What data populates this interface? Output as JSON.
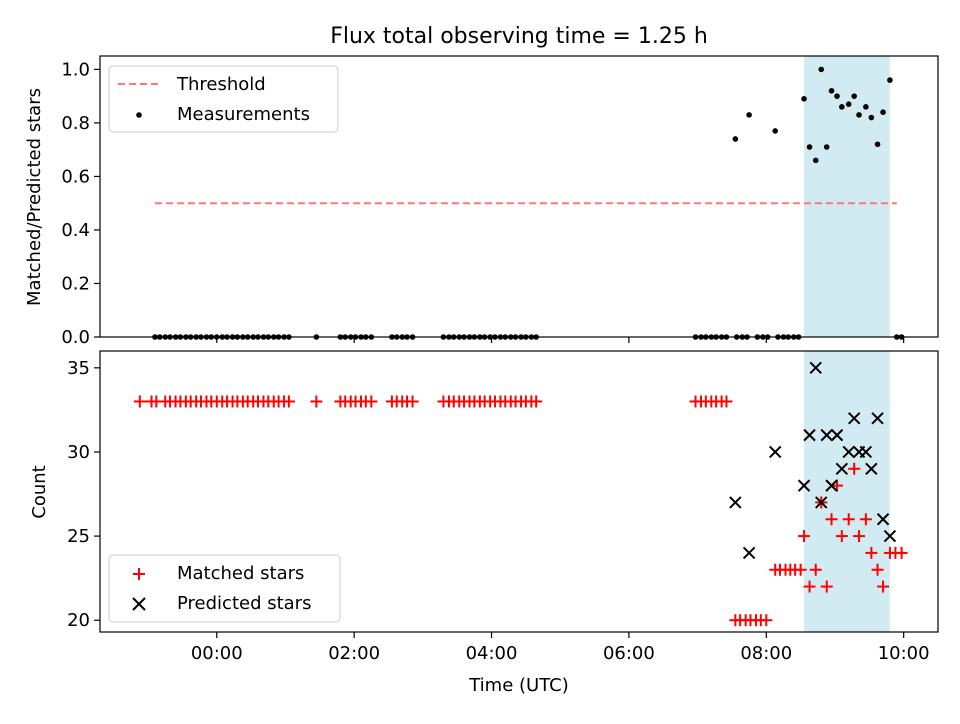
{
  "title": "Flux total observing time = 1.25 h",
  "highlight_window": {
    "start": 8.55,
    "end": 9.8,
    "color": "#add8e6"
  },
  "chart_data": [
    {
      "type": "scatter",
      "ylabel": "Matched/Predicted stars",
      "ylim": [
        0,
        1.05
      ],
      "yticks": [
        0.0,
        0.2,
        0.4,
        0.6,
        0.8,
        1.0
      ],
      "yticklabels": [
        "0.0",
        "0.2",
        "0.4",
        "0.6",
        "0.8",
        "1.0"
      ],
      "threshold": {
        "name": "Threshold",
        "value": 0.5,
        "x": [
          -0.9,
          9.9
        ],
        "color": "#ff7777"
      },
      "legend": {
        "position": "upper-left",
        "entries": [
          "Threshold",
          "Measurements"
        ]
      },
      "series": [
        {
          "name": "Measurements",
          "color": "#000000",
          "points": [
            [
              -0.9,
              0
            ],
            [
              -0.83,
              0
            ],
            [
              -0.75,
              0
            ],
            [
              -0.68,
              0
            ],
            [
              -0.6,
              0
            ],
            [
              -0.53,
              0
            ],
            [
              -0.45,
              0
            ],
            [
              -0.38,
              0
            ],
            [
              -0.3,
              0
            ],
            [
              -0.23,
              0
            ],
            [
              -0.15,
              0
            ],
            [
              -0.08,
              0
            ],
            [
              0,
              0
            ],
            [
              0.08,
              0
            ],
            [
              0.15,
              0
            ],
            [
              0.23,
              0
            ],
            [
              0.3,
              0
            ],
            [
              0.38,
              0
            ],
            [
              0.45,
              0
            ],
            [
              0.53,
              0
            ],
            [
              0.6,
              0
            ],
            [
              0.68,
              0
            ],
            [
              0.75,
              0
            ],
            [
              0.83,
              0
            ],
            [
              0.9,
              0
            ],
            [
              0.98,
              0
            ],
            [
              1.05,
              0
            ],
            [
              1.45,
              0
            ],
            [
              1.8,
              0
            ],
            [
              1.87,
              0
            ],
            [
              1.95,
              0
            ],
            [
              2.02,
              0
            ],
            [
              2.1,
              0
            ],
            [
              2.17,
              0
            ],
            [
              2.25,
              0
            ],
            [
              2.55,
              0
            ],
            [
              2.62,
              0
            ],
            [
              2.7,
              0
            ],
            [
              2.77,
              0
            ],
            [
              2.85,
              0
            ],
            [
              3.3,
              0
            ],
            [
              3.38,
              0
            ],
            [
              3.45,
              0
            ],
            [
              3.53,
              0
            ],
            [
              3.6,
              0
            ],
            [
              3.68,
              0
            ],
            [
              3.75,
              0
            ],
            [
              3.83,
              0
            ],
            [
              3.9,
              0
            ],
            [
              3.98,
              0
            ],
            [
              4.05,
              0
            ],
            [
              4.13,
              0
            ],
            [
              4.2,
              0
            ],
            [
              4.28,
              0
            ],
            [
              4.35,
              0
            ],
            [
              4.43,
              0
            ],
            [
              4.5,
              0
            ],
            [
              4.58,
              0
            ],
            [
              4.65,
              0
            ],
            [
              6.97,
              0
            ],
            [
              7.05,
              0
            ],
            [
              7.12,
              0
            ],
            [
              7.2,
              0
            ],
            [
              7.27,
              0
            ],
            [
              7.35,
              0
            ],
            [
              7.42,
              0
            ],
            [
              7.57,
              0
            ],
            [
              7.65,
              0
            ],
            [
              7.72,
              0
            ],
            [
              7.87,
              0
            ],
            [
              7.95,
              0
            ],
            [
              8.02,
              0
            ],
            [
              8.17,
              0
            ],
            [
              8.25,
              0
            ],
            [
              8.32,
              0
            ],
            [
              8.4,
              0
            ],
            [
              8.47,
              0
            ],
            [
              9.9,
              0
            ],
            [
              9.97,
              0
            ],
            [
              7.55,
              0.74
            ],
            [
              7.75,
              0.83
            ],
            [
              8.13,
              0.77
            ],
            [
              8.55,
              0.89
            ],
            [
              8.63,
              0.71
            ],
            [
              8.72,
              0.66
            ],
            [
              8.8,
              1.0
            ],
            [
              8.88,
              0.71
            ],
            [
              8.95,
              0.92
            ],
            [
              9.03,
              0.9
            ],
            [
              9.1,
              0.86
            ],
            [
              9.2,
              0.87
            ],
            [
              9.28,
              0.9
            ],
            [
              9.35,
              0.83
            ],
            [
              9.45,
              0.86
            ],
            [
              9.53,
              0.82
            ],
            [
              9.62,
              0.72
            ],
            [
              9.7,
              0.84
            ],
            [
              9.8,
              0.96
            ]
          ]
        }
      ]
    },
    {
      "type": "scatter",
      "xlabel": "Time (UTC)",
      "ylabel": "Count",
      "ylim": [
        19.3,
        36
      ],
      "yticks": [
        20,
        25,
        30,
        35
      ],
      "yticklabels": [
        "20",
        "25",
        "30",
        "35"
      ],
      "xlim": [
        -1.7,
        10.5
      ],
      "xticks": [
        0,
        2,
        4,
        6,
        8,
        10
      ],
      "xticklabels": [
        "00:00",
        "02:00",
        "04:00",
        "06:00",
        "08:00",
        "10:00"
      ],
      "legend": {
        "position": "lower-left",
        "entries": [
          "Matched stars",
          "Predicted stars"
        ]
      },
      "series": [
        {
          "name": "Matched stars",
          "marker": "plus",
          "color": "#ff0000",
          "points": [
            [
              -1.12,
              33
            ],
            [
              -0.95,
              33
            ],
            [
              -0.88,
              33
            ],
            [
              -0.75,
              33
            ],
            [
              -0.68,
              33
            ],
            [
              -0.6,
              33
            ],
            [
              -0.53,
              33
            ],
            [
              -0.45,
              33
            ],
            [
              -0.38,
              33
            ],
            [
              -0.3,
              33
            ],
            [
              -0.23,
              33
            ],
            [
              -0.15,
              33
            ],
            [
              -0.08,
              33
            ],
            [
              0,
              33
            ],
            [
              0.08,
              33
            ],
            [
              0.15,
              33
            ],
            [
              0.23,
              33
            ],
            [
              0.3,
              33
            ],
            [
              0.38,
              33
            ],
            [
              0.45,
              33
            ],
            [
              0.53,
              33
            ],
            [
              0.6,
              33
            ],
            [
              0.68,
              33
            ],
            [
              0.75,
              33
            ],
            [
              0.83,
              33
            ],
            [
              0.9,
              33
            ],
            [
              0.98,
              33
            ],
            [
              1.05,
              33
            ],
            [
              1.45,
              33
            ],
            [
              1.8,
              33
            ],
            [
              1.87,
              33
            ],
            [
              1.95,
              33
            ],
            [
              2.02,
              33
            ],
            [
              2.1,
              33
            ],
            [
              2.17,
              33
            ],
            [
              2.25,
              33
            ],
            [
              2.55,
              33
            ],
            [
              2.62,
              33
            ],
            [
              2.7,
              33
            ],
            [
              2.77,
              33
            ],
            [
              2.85,
              33
            ],
            [
              3.3,
              33
            ],
            [
              3.38,
              33
            ],
            [
              3.45,
              33
            ],
            [
              3.53,
              33
            ],
            [
              3.6,
              33
            ],
            [
              3.68,
              33
            ],
            [
              3.75,
              33
            ],
            [
              3.83,
              33
            ],
            [
              3.9,
              33
            ],
            [
              3.98,
              33
            ],
            [
              4.05,
              33
            ],
            [
              4.13,
              33
            ],
            [
              4.2,
              33
            ],
            [
              4.28,
              33
            ],
            [
              4.35,
              33
            ],
            [
              4.43,
              33
            ],
            [
              4.5,
              33
            ],
            [
              4.58,
              33
            ],
            [
              4.65,
              33
            ],
            [
              6.97,
              33
            ],
            [
              7.05,
              33
            ],
            [
              7.12,
              33
            ],
            [
              7.2,
              33
            ],
            [
              7.27,
              33
            ],
            [
              7.35,
              33
            ],
            [
              7.42,
              33
            ],
            [
              7.55,
              20
            ],
            [
              7.62,
              20
            ],
            [
              7.7,
              20
            ],
            [
              7.77,
              20
            ],
            [
              7.85,
              20
            ],
            [
              7.92,
              20
            ],
            [
              8.0,
              20
            ],
            [
              8.13,
              23
            ],
            [
              8.2,
              23
            ],
            [
              8.28,
              23
            ],
            [
              8.35,
              23
            ],
            [
              8.42,
              23
            ],
            [
              8.5,
              23
            ],
            [
              8.55,
              25
            ],
            [
              8.63,
              22
            ],
            [
              8.72,
              23
            ],
            [
              8.8,
              27
            ],
            [
              8.88,
              22
            ],
            [
              8.95,
              26
            ],
            [
              9.03,
              28
            ],
            [
              9.1,
              25
            ],
            [
              9.2,
              26
            ],
            [
              9.28,
              29
            ],
            [
              9.35,
              25
            ],
            [
              9.45,
              26
            ],
            [
              9.53,
              24
            ],
            [
              9.62,
              23
            ],
            [
              9.7,
              22
            ],
            [
              9.8,
              24
            ],
            [
              9.88,
              24
            ],
            [
              9.97,
              24
            ]
          ]
        },
        {
          "name": "Predicted stars",
          "marker": "x",
          "color": "#000000",
          "points": [
            [
              7.55,
              27
            ],
            [
              7.75,
              24
            ],
            [
              8.13,
              30
            ],
            [
              8.55,
              28
            ],
            [
              8.63,
              31
            ],
            [
              8.72,
              35
            ],
            [
              8.8,
              27
            ],
            [
              8.88,
              31
            ],
            [
              8.95,
              28
            ],
            [
              9.03,
              31
            ],
            [
              9.1,
              29
            ],
            [
              9.2,
              30
            ],
            [
              9.28,
              32
            ],
            [
              9.35,
              30
            ],
            [
              9.45,
              30
            ],
            [
              9.53,
              29
            ],
            [
              9.62,
              32
            ],
            [
              9.7,
              26
            ],
            [
              9.8,
              25
            ]
          ]
        }
      ]
    }
  ]
}
